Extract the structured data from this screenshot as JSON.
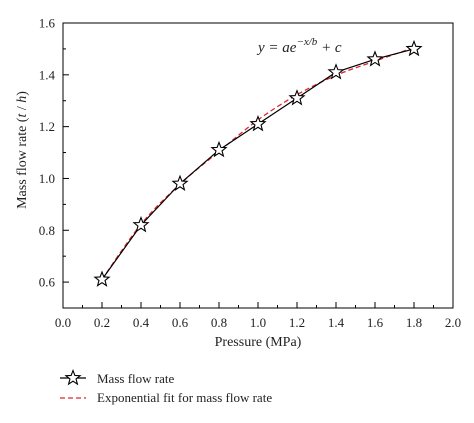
{
  "chart_data": {
    "type": "line",
    "xlabel": "Pressure (MPa)",
    "ylabel_prefix": "Mass flow rate (",
    "ylabel_unit": "t",
    "ylabel_mid": " / ",
    "ylabel_unit2": "h",
    "ylabel_suffix": ")",
    "xlim": [
      0.0,
      2.0
    ],
    "ylim": [
      0.5,
      1.6
    ],
    "xticks": [
      "0.0",
      "0.2",
      "0.4",
      "0.6",
      "0.8",
      "1.0",
      "1.2",
      "1.4",
      "1.6",
      "1.8",
      "2.0"
    ],
    "yticks": [
      "0.6",
      "0.8",
      "1.0",
      "1.2",
      "1.4",
      "1.6"
    ],
    "equation": {
      "lhs": "y = ae",
      "exponent": "−x/b",
      "rhs": " + c"
    },
    "legend": {
      "placement": "bottom",
      "entries": [
        "Mass flow rate",
        "Exponential fit for mass flow rate"
      ]
    },
    "series": [
      {
        "name": "Mass flow rate",
        "marker": "star",
        "color": "#000000",
        "x": [
          0.2,
          0.4,
          0.6,
          0.8,
          1.0,
          1.2,
          1.4,
          1.6,
          1.8
        ],
        "y": [
          0.61,
          0.82,
          0.98,
          1.11,
          1.21,
          1.31,
          1.41,
          1.46,
          1.5
        ]
      },
      {
        "name": "Exponential fit for mass flow rate",
        "style": "dashed",
        "color": "#e0242b",
        "x": [
          0.2,
          0.4,
          0.6,
          0.8,
          1.0,
          1.2,
          1.4,
          1.6,
          1.8
        ],
        "y": [
          0.61,
          0.823,
          0.978,
          1.104,
          1.226,
          1.323,
          1.398,
          1.453,
          1.505
        ]
      }
    ]
  }
}
